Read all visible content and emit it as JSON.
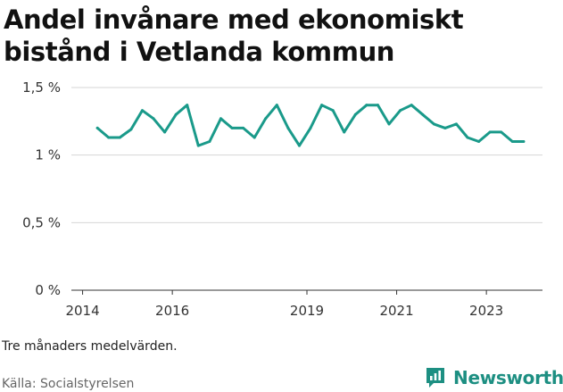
{
  "chart_data": {
    "type": "line",
    "title": "Andel invånare med ekonomiskt bistånd i Vetlanda kommun",
    "xlabel": "",
    "ylabel": "",
    "ylim": [
      0,
      1.5
    ],
    "xlim": [
      2013.75,
      2024.25
    ],
    "grid": true,
    "color": "#1a9a8a",
    "y_ticks": [
      {
        "value": 0,
        "label": "0 %"
      },
      {
        "value": 0.5,
        "label": "0,5 %"
      },
      {
        "value": 1,
        "label": "1 %"
      },
      {
        "value": 1.5,
        "label": "1,5 %"
      }
    ],
    "x_ticks": [
      {
        "value": 2014,
        "label": "2014"
      },
      {
        "value": 2016,
        "label": "2016"
      },
      {
        "value": 2019,
        "label": "2019"
      },
      {
        "value": 2021,
        "label": "2021"
      },
      {
        "value": 2023,
        "label": "2023"
      }
    ],
    "series": [
      {
        "name": "Andel invånare med ekonomiskt bistånd",
        "x": [
          2014.33,
          2014.58,
          2014.83,
          2015.08,
          2015.33,
          2015.58,
          2015.83,
          2016.08,
          2016.33,
          2016.58,
          2016.83,
          2017.08,
          2017.33,
          2017.58,
          2017.83,
          2018.08,
          2018.33,
          2018.58,
          2018.83,
          2019.08,
          2019.33,
          2019.58,
          2019.83,
          2020.08,
          2020.33,
          2020.58,
          2020.83,
          2021.08,
          2021.33,
          2021.58,
          2021.83,
          2022.08,
          2022.33,
          2022.58,
          2022.83,
          2023.08,
          2023.33,
          2023.58,
          2023.83
        ],
        "values": [
          1.2,
          1.13,
          1.13,
          1.19,
          1.33,
          1.27,
          1.17,
          1.3,
          1.37,
          1.07,
          1.1,
          1.27,
          1.2,
          1.2,
          1.13,
          1.27,
          1.37,
          1.2,
          1.07,
          1.2,
          1.37,
          1.33,
          1.17,
          1.3,
          1.37,
          1.37,
          1.23,
          1.33,
          1.37,
          1.3,
          1.23,
          1.2,
          1.23,
          1.13,
          1.1,
          1.17,
          1.17,
          1.1,
          1.1
        ]
      }
    ],
    "note": "Tre månaders medelvärden.",
    "source": "Källa: Socialstyrelsen"
  },
  "brand": {
    "name": "Newsworthy",
    "logo_icon": "newsworthy-logo-icon",
    "color": "#1d8f82"
  }
}
